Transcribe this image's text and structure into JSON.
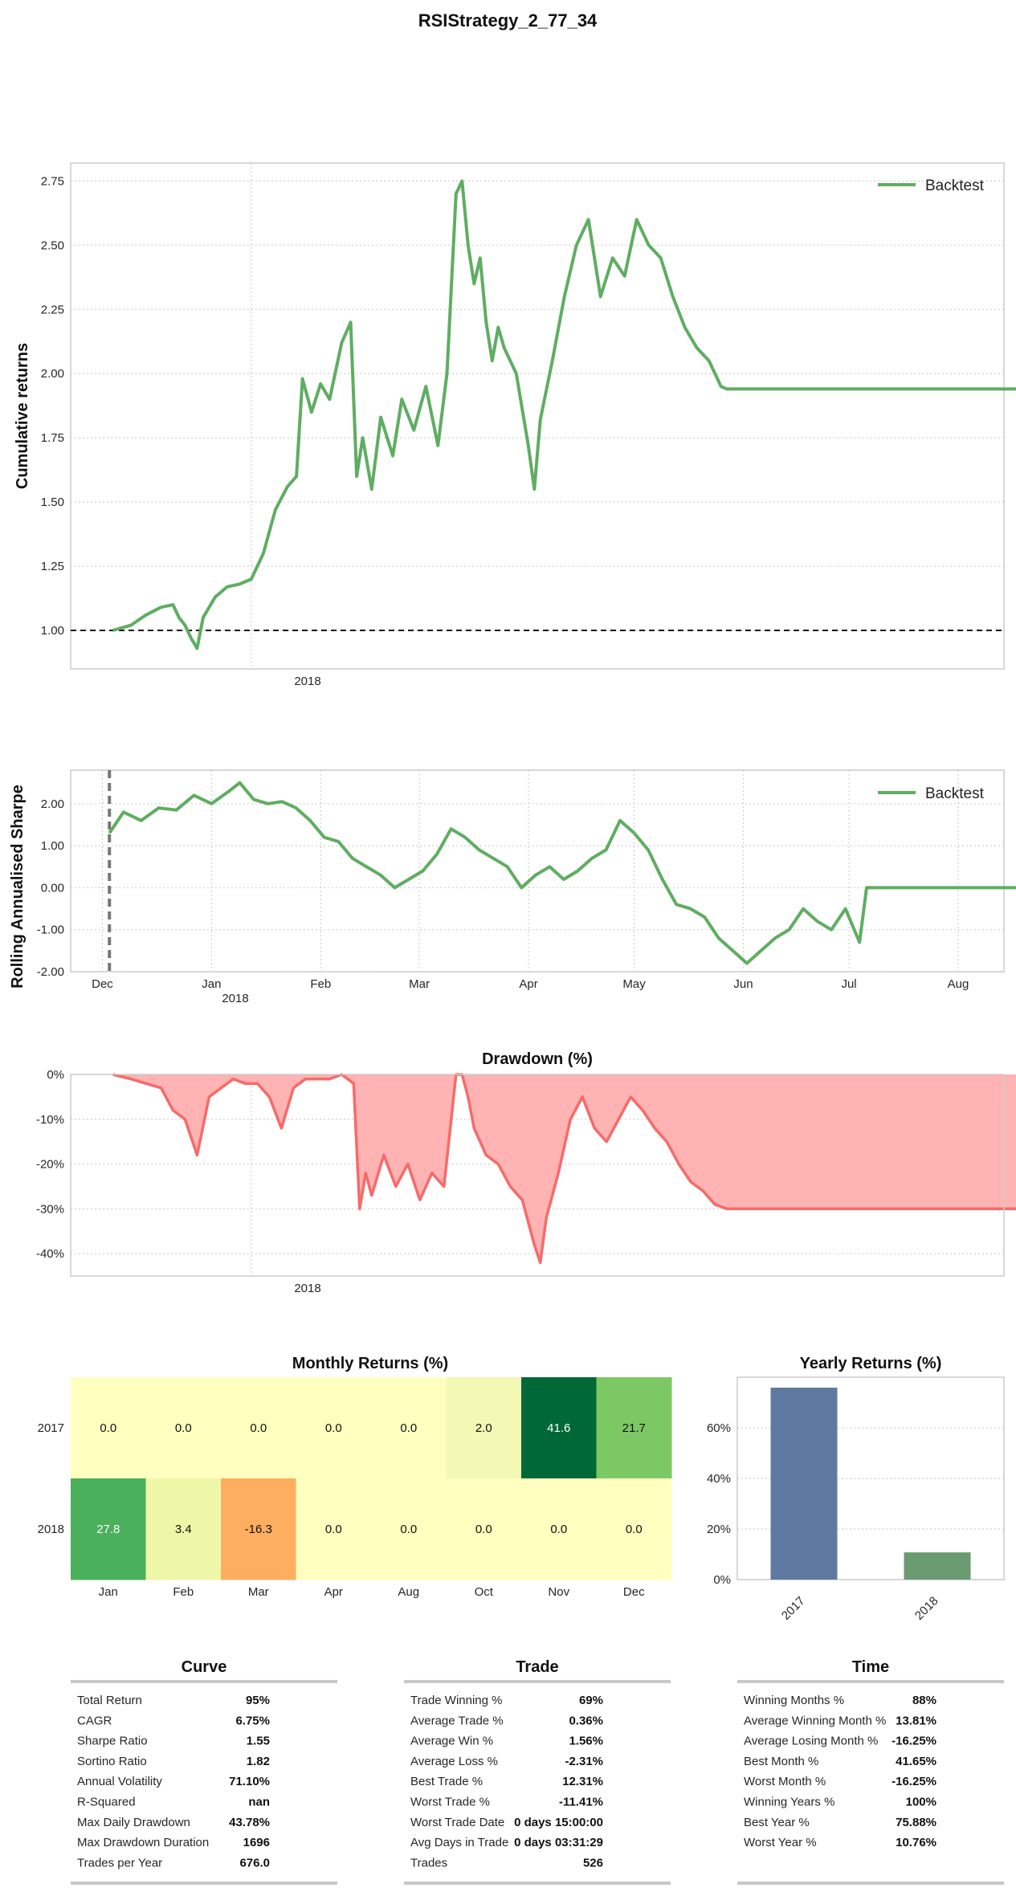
{
  "title": "RSIStrategy_2_77_34",
  "colors": {
    "strategy": "#5fad62",
    "drawdown_line": "#f76a6a",
    "drawdown_fill": "#ffb3b3",
    "bar_2017": "#5f7aa1",
    "bar_2018": "#6a9a72",
    "positive": "#008000",
    "negative": "#ff0000"
  },
  "chart_data": [
    {
      "type": "line",
      "id": "cumulative",
      "ylabel": "Cumulative returns",
      "ylim": [
        0.85,
        2.82
      ],
      "yticks": [
        "1.00",
        "1.25",
        "1.50",
        "1.75",
        "2.00",
        "2.25",
        "2.50",
        "2.75"
      ],
      "xtick_label": "2018",
      "baseline": 1.0,
      "legend": "Backtest",
      "legend_position": "top-right",
      "x_range_days": [
        -60,
        250
      ],
      "series": [
        {
          "name": "Backtest",
          "points": [
            [
              -46,
              1.0
            ],
            [
              -40,
              1.02
            ],
            [
              -35,
              1.06
            ],
            [
              -30,
              1.09
            ],
            [
              -26,
              1.1
            ],
            [
              -24,
              1.05
            ],
            [
              -22,
              1.02
            ],
            [
              -20,
              0.97
            ],
            [
              -18,
              0.93
            ],
            [
              -16,
              1.05
            ],
            [
              -12,
              1.13
            ],
            [
              -8,
              1.17
            ],
            [
              -4,
              1.18
            ],
            [
              0,
              1.2
            ],
            [
              4,
              1.3
            ],
            [
              8,
              1.47
            ],
            [
              12,
              1.56
            ],
            [
              15,
              1.6
            ],
            [
              17,
              1.98
            ],
            [
              20,
              1.85
            ],
            [
              23,
              1.96
            ],
            [
              26,
              1.9
            ],
            [
              30,
              2.12
            ],
            [
              33,
              2.2
            ],
            [
              35,
              1.6
            ],
            [
              37,
              1.75
            ],
            [
              40,
              1.55
            ],
            [
              43,
              1.83
            ],
            [
              47,
              1.68
            ],
            [
              50,
              1.9
            ],
            [
              54,
              1.78
            ],
            [
              58,
              1.95
            ],
            [
              62,
              1.72
            ],
            [
              65,
              2.0
            ],
            [
              68,
              2.7
            ],
            [
              70,
              2.75
            ],
            [
              72,
              2.5
            ],
            [
              74,
              2.35
            ],
            [
              76,
              2.45
            ],
            [
              78,
              2.2
            ],
            [
              80,
              2.05
            ],
            [
              82,
              2.18
            ],
            [
              84,
              2.1
            ],
            [
              88,
              2.0
            ],
            [
              92,
              1.72
            ],
            [
              94,
              1.55
            ],
            [
              96,
              1.82
            ],
            [
              100,
              2.05
            ],
            [
              104,
              2.3
            ],
            [
              108,
              2.5
            ],
            [
              112,
              2.6
            ],
            [
              116,
              2.3
            ],
            [
              120,
              2.45
            ],
            [
              124,
              2.38
            ],
            [
              128,
              2.6
            ],
            [
              132,
              2.5
            ],
            [
              136,
              2.45
            ],
            [
              140,
              2.3
            ],
            [
              144,
              2.18
            ],
            [
              148,
              2.1
            ],
            [
              152,
              2.05
            ],
            [
              156,
              1.95
            ],
            [
              158,
              1.94
            ],
            [
              300,
              1.94
            ]
          ]
        }
      ]
    },
    {
      "type": "line",
      "id": "rolling_sharpe",
      "ylabel": "Rolling Annualised Sharpe",
      "ylim": [
        -2.0,
        2.8
      ],
      "yticks": [
        "-2.00",
        "-1.00",
        "0.00",
        "1.00",
        "2.00"
      ],
      "xticks": [
        "Dec",
        "Jan",
        "Feb",
        "Mar",
        "Apr",
        "May",
        "Jun",
        "Jul",
        "Aug"
      ],
      "xtick_sub": "2018",
      "legend": "Backtest",
      "legend_position": "top-right",
      "x_range_days": [
        -40,
        225
      ],
      "marker_line_day": -29,
      "series": [
        {
          "name": "Backtest",
          "points": [
            [
              -29,
              1.3
            ],
            [
              -25,
              1.8
            ],
            [
              -20,
              1.6
            ],
            [
              -15,
              1.9
            ],
            [
              -10,
              1.85
            ],
            [
              -5,
              2.2
            ],
            [
              0,
              2.0
            ],
            [
              5,
              2.3
            ],
            [
              8,
              2.5
            ],
            [
              12,
              2.1
            ],
            [
              16,
              2.0
            ],
            [
              20,
              2.05
            ],
            [
              24,
              1.9
            ],
            [
              28,
              1.6
            ],
            [
              32,
              1.2
            ],
            [
              36,
              1.1
            ],
            [
              40,
              0.7
            ],
            [
              44,
              0.5
            ],
            [
              48,
              0.3
            ],
            [
              52,
              0.0
            ],
            [
              56,
              0.2
            ],
            [
              60,
              0.4
            ],
            [
              64,
              0.8
            ],
            [
              68,
              1.4
            ],
            [
              72,
              1.2
            ],
            [
              76,
              0.9
            ],
            [
              80,
              0.7
            ],
            [
              84,
              0.5
            ],
            [
              88,
              0.0
            ],
            [
              92,
              0.3
            ],
            [
              96,
              0.5
            ],
            [
              100,
              0.2
            ],
            [
              104,
              0.4
            ],
            [
              108,
              0.7
            ],
            [
              112,
              0.9
            ],
            [
              116,
              1.6
            ],
            [
              120,
              1.3
            ],
            [
              124,
              0.9
            ],
            [
              128,
              0.2
            ],
            [
              132,
              -0.4
            ],
            [
              136,
              -0.5
            ],
            [
              140,
              -0.7
            ],
            [
              144,
              -1.2
            ],
            [
              148,
              -1.5
            ],
            [
              152,
              -1.8
            ],
            [
              156,
              -1.5
            ],
            [
              160,
              -1.2
            ],
            [
              164,
              -1.0
            ],
            [
              168,
              -0.5
            ],
            [
              172,
              -0.8
            ],
            [
              176,
              -1.0
            ],
            [
              180,
              -0.5
            ],
            [
              184,
              -1.3
            ],
            [
              186,
              0.0
            ],
            [
              230,
              0.0
            ]
          ]
        }
      ]
    },
    {
      "type": "area",
      "id": "drawdown",
      "title": "Drawdown (%)",
      "ylim": [
        -45,
        0
      ],
      "yticks": [
        "0%",
        "-10%",
        "-20%",
        "-30%",
        "-40%"
      ],
      "xtick_label": "2018",
      "x_range_days": [
        -60,
        250
      ],
      "series": [
        {
          "name": "Drawdown",
          "points": [
            [
              -46,
              0
            ],
            [
              -40,
              -1
            ],
            [
              -35,
              -2
            ],
            [
              -30,
              -3
            ],
            [
              -26,
              -8
            ],
            [
              -22,
              -10
            ],
            [
              -18,
              -18
            ],
            [
              -14,
              -5
            ],
            [
              -10,
              -3
            ],
            [
              -6,
              -1
            ],
            [
              -2,
              -2
            ],
            [
              2,
              -2
            ],
            [
              6,
              -5
            ],
            [
              10,
              -12
            ],
            [
              14,
              -3
            ],
            [
              18,
              -1
            ],
            [
              22,
              -1
            ],
            [
              26,
              -1
            ],
            [
              30,
              0
            ],
            [
              34,
              -2
            ],
            [
              36,
              -30
            ],
            [
              38,
              -22
            ],
            [
              40,
              -27
            ],
            [
              44,
              -18
            ],
            [
              48,
              -25
            ],
            [
              52,
              -20
            ],
            [
              56,
              -28
            ],
            [
              60,
              -22
            ],
            [
              64,
              -25
            ],
            [
              68,
              0
            ],
            [
              70,
              0
            ],
            [
              72,
              -5
            ],
            [
              74,
              -12
            ],
            [
              78,
              -18
            ],
            [
              82,
              -20
            ],
            [
              86,
              -25
            ],
            [
              90,
              -28
            ],
            [
              94,
              -38
            ],
            [
              96,
              -42
            ],
            [
              98,
              -32
            ],
            [
              102,
              -22
            ],
            [
              106,
              -10
            ],
            [
              110,
              -5
            ],
            [
              114,
              -12
            ],
            [
              118,
              -15
            ],
            [
              122,
              -10
            ],
            [
              126,
              -5
            ],
            [
              130,
              -8
            ],
            [
              134,
              -12
            ],
            [
              138,
              -15
            ],
            [
              142,
              -20
            ],
            [
              146,
              -24
            ],
            [
              150,
              -26
            ],
            [
              154,
              -29
            ],
            [
              158,
              -30
            ],
            [
              300,
              -30
            ]
          ]
        }
      ]
    },
    {
      "type": "heatmap",
      "id": "monthly_returns",
      "title": "Monthly Returns (%)",
      "rows": [
        "2017",
        "2018"
      ],
      "columns": [
        "Jan",
        "Feb",
        "Mar",
        "Apr",
        "Aug",
        "Oct",
        "Nov",
        "Dec"
      ],
      "values": [
        [
          "0.0",
          "0.0",
          "0.0",
          "0.0",
          "0.0",
          "2.0",
          "41.6",
          "21.7"
        ],
        [
          "27.8",
          "3.4",
          "-16.3",
          "0.0",
          "0.0",
          "0.0",
          "0.0",
          "0.0"
        ]
      ],
      "numeric": [
        [
          0,
          0,
          0,
          0,
          0,
          2,
          41.6,
          21.7
        ],
        [
          27.8,
          3.4,
          -16.3,
          0,
          0,
          0,
          0,
          0
        ]
      ]
    },
    {
      "type": "bar",
      "id": "yearly_returns",
      "title": "Yearly Returns (%)",
      "categories": [
        "2017",
        "2018"
      ],
      "values": [
        75.88,
        10.76
      ],
      "ylim": [
        0,
        80
      ],
      "yticks": [
        "0%",
        "20%",
        "40%",
        "60%"
      ]
    },
    {
      "type": "table",
      "id": "stats",
      "tables": [
        {
          "title": "Curve",
          "rows": [
            {
              "label": "Total Return",
              "value": "95%",
              "tone": "neutral"
            },
            {
              "label": "CAGR",
              "value": "6.75%",
              "tone": "neutral"
            },
            {
              "label": "Sharpe Ratio",
              "value": "1.55",
              "tone": "neutral"
            },
            {
              "label": "Sortino Ratio",
              "value": "1.82",
              "tone": "neutral"
            },
            {
              "label": "Annual Volatility",
              "value": "71.10%",
              "tone": "neutral"
            },
            {
              "label": "R-Squared",
              "value": "nan",
              "tone": "neutral"
            },
            {
              "label": "Max Daily Drawdown",
              "value": "43.78%",
              "tone": "negative"
            },
            {
              "label": "Max Drawdown Duration",
              "value": "1696",
              "tone": "neutral"
            },
            {
              "label": "Trades per Year",
              "value": "676.0",
              "tone": "neutral"
            }
          ]
        },
        {
          "title": "Trade",
          "rows": [
            {
              "label": "Trade Winning %",
              "value": "69%",
              "tone": "neutral"
            },
            {
              "label": "Average Trade %",
              "value": "0.36%",
              "tone": "neutral"
            },
            {
              "label": "Average Win %",
              "value": "1.56%",
              "tone": "positive"
            },
            {
              "label": "Average Loss %",
              "value": "-2.31%",
              "tone": "negative"
            },
            {
              "label": "Best Trade %",
              "value": "12.31%",
              "tone": "positive"
            },
            {
              "label": "Worst Trade %",
              "value": "-11.41%",
              "tone": "negative"
            },
            {
              "label": "Worst Trade Date",
              "value": "0 days 15:00:00",
              "tone": "neutral"
            },
            {
              "label": "Avg Days in Trade",
              "value": "0 days 03:31:29",
              "tone": "neutral"
            },
            {
              "label": "Trades",
              "value": "526",
              "tone": "neutral"
            }
          ]
        },
        {
          "title": "Time",
          "rows": [
            {
              "label": "Winning Months %",
              "value": "88%",
              "tone": "neutral"
            },
            {
              "label": "Average Winning Month %",
              "value": "13.81%",
              "tone": "positive"
            },
            {
              "label": "Average Losing Month %",
              "value": "-16.25%",
              "tone": "negative"
            },
            {
              "label": "Best Month %",
              "value": "41.65%",
              "tone": "positive"
            },
            {
              "label": "Worst Month %",
              "value": "-16.25%",
              "tone": "negative"
            },
            {
              "label": "Winning Years %",
              "value": "100%",
              "tone": "neutral"
            },
            {
              "label": "Best Year %",
              "value": "75.88%",
              "tone": "positive"
            },
            {
              "label": "Worst Year %",
              "value": "10.76%",
              "tone": "positive"
            }
          ]
        }
      ]
    }
  ]
}
